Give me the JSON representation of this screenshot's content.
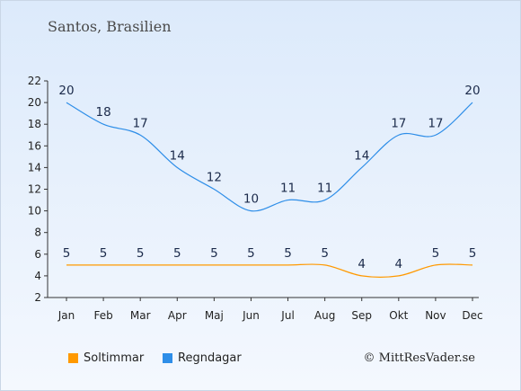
{
  "title": "Santos, Brasilien",
  "copyright": "© MittResVader.se",
  "chart_data": {
    "type": "line",
    "categories": [
      "Jan",
      "Feb",
      "Mar",
      "Apr",
      "Maj",
      "Jun",
      "Jul",
      "Aug",
      "Sep",
      "Okt",
      "Nov",
      "Dec"
    ],
    "series": [
      {
        "name": "Soltimmar",
        "color": "#ff9900",
        "values": [
          5,
          5,
          5,
          5,
          5,
          5,
          5,
          5,
          4,
          4,
          5,
          5
        ]
      },
      {
        "name": "Regndagar",
        "color": "#2e8ee8",
        "values": [
          20,
          18,
          17,
          14,
          12,
          10,
          11,
          11,
          14,
          17,
          17,
          20
        ]
      }
    ],
    "yticks": [
      2,
      4,
      6,
      8,
      10,
      12,
      14,
      16,
      18,
      20,
      22
    ],
    "ylim": [
      2,
      22
    ],
    "grid": false,
    "legend": "bottom-left"
  }
}
